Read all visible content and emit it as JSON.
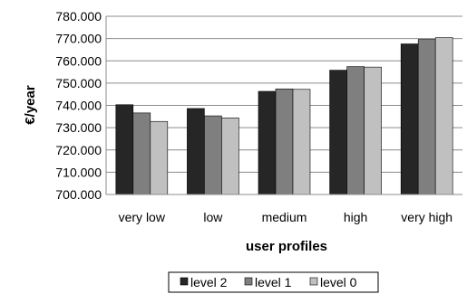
{
  "chart_data": {
    "type": "bar",
    "title": "",
    "xlabel": "user profiles",
    "ylabel": "€/year",
    "categories": [
      "very low",
      "low",
      "medium",
      "high",
      "very high"
    ],
    "series": [
      {
        "name": "level 2",
        "color": "#262626",
        "values": [
          740.3,
          738.6,
          746.3,
          755.8,
          767.6
        ]
      },
      {
        "name": "level 1",
        "color": "#7f7f7f",
        "values": [
          736.6,
          735.3,
          747.4,
          757.4,
          769.6
        ]
      },
      {
        "name": "level 0",
        "color": "#c0c0c0",
        "values": [
          732.8,
          734.4,
          747.2,
          757.2,
          770.4
        ]
      }
    ],
    "ylim": [
      700,
      780
    ],
    "yticks": [
      700,
      710,
      720,
      730,
      740,
      750,
      760,
      770,
      780
    ],
    "ytick_labels": [
      "700.000",
      "710.000",
      "720.000",
      "730.000",
      "740.000",
      "750.000",
      "760.000",
      "770.000",
      "780.000"
    ],
    "grid": true,
    "legend_position": "bottom"
  }
}
